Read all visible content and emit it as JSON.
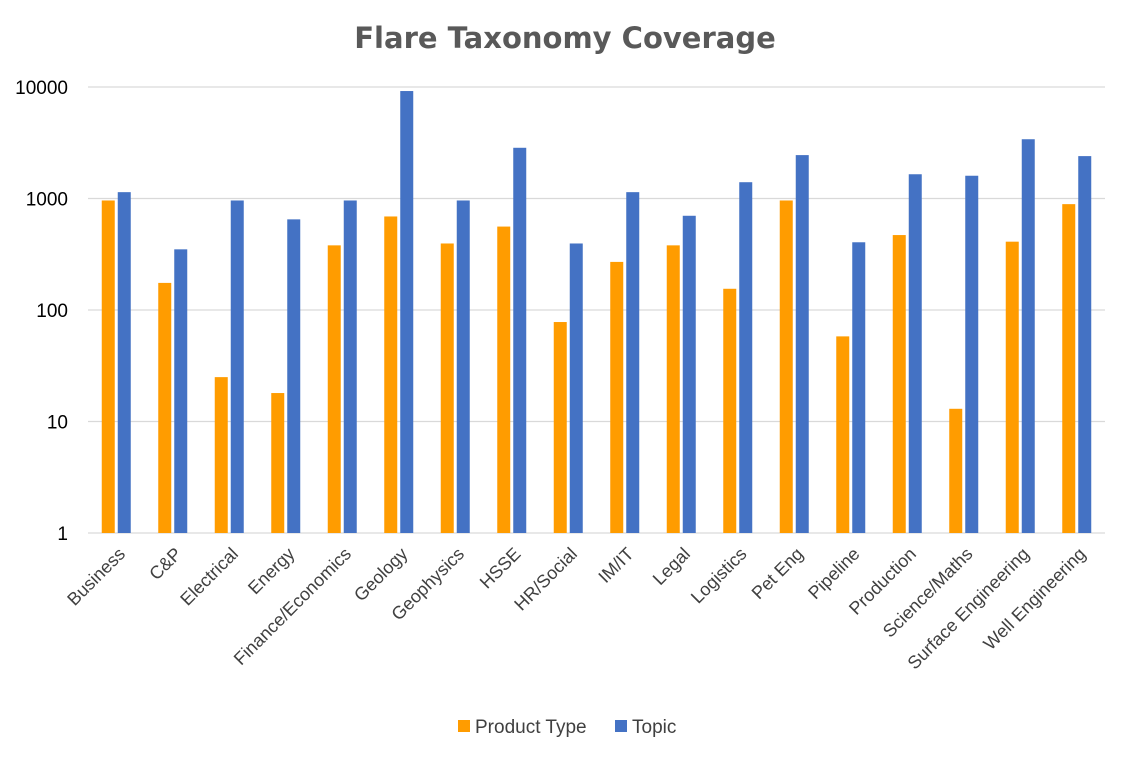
{
  "chart_data": {
    "type": "bar",
    "title": "Flare Taxonomy Coverage",
    "xlabel": "",
    "ylabel": "",
    "yscale": "log",
    "ylim": [
      1,
      10000
    ],
    "yticks": [
      "1",
      "10",
      "100",
      "1000",
      "10000"
    ],
    "grid": true,
    "legend_position": "bottom",
    "categories": [
      "Business",
      "C&P",
      "Electrical",
      "Energy",
      "Finance/Economics",
      "Geology",
      "Geophysics",
      "HSSE",
      "HR/Social",
      "IM/IT",
      "Legal",
      "Logistics",
      "Pet Eng",
      "Pipeline",
      "Production",
      "Science/Maths",
      "Surface Engineering",
      "Well Engineering"
    ],
    "series": [
      {
        "name": "Product Type",
        "color": "#ff9c00",
        "values": [
          960,
          175,
          25,
          18,
          380,
          690,
          395,
          560,
          78,
          270,
          380,
          155,
          960,
          58,
          470,
          13,
          410,
          890
        ]
      },
      {
        "name": "Topic",
        "color": "#4472c4",
        "values": [
          1140,
          350,
          960,
          650,
          960,
          9200,
          960,
          2850,
          395,
          1140,
          700,
          1400,
          2450,
          405,
          1650,
          1600,
          3400,
          2400
        ]
      }
    ]
  }
}
